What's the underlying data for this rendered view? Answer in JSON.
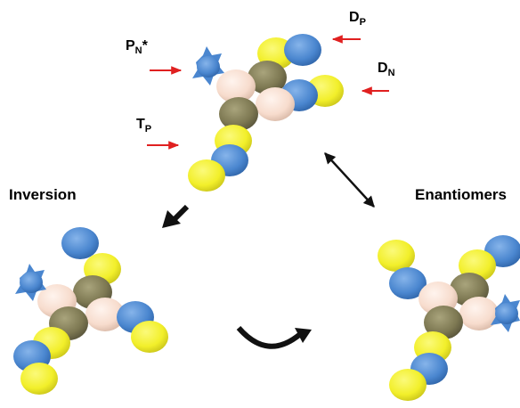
{
  "labels": {
    "inversion": "Inversion",
    "enantiomers": "Enantiomers",
    "p_n": {
      "main": "P",
      "sub": "N",
      "suffix": "*"
    },
    "t_p": {
      "main": "T",
      "sub": "P"
    },
    "d_p": {
      "main": "D",
      "sub": "P"
    },
    "d_n": {
      "main": "D",
      "sub": "N"
    }
  },
  "colors": {
    "yellow": "#f2ef2a",
    "blue": "#4a86cf",
    "olive": "#7d7852",
    "pink": "#f7dccd",
    "red_arrow": "#e02020",
    "black": "#111111"
  }
}
